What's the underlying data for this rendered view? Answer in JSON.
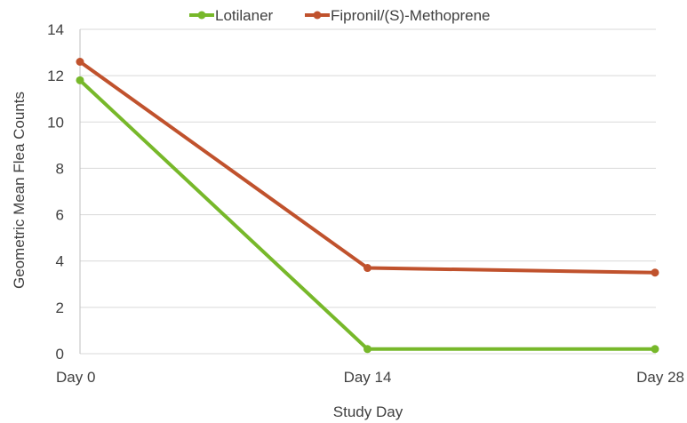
{
  "chart_data": {
    "type": "line",
    "title": "",
    "xlabel": "Study Day",
    "ylabel": "Geometric Mean Flea Counts",
    "categories": [
      "Day 0",
      "Day 14",
      "Day 28"
    ],
    "ylim": [
      0,
      14
    ],
    "yticks": [
      "0",
      "2",
      "4",
      "6",
      "8",
      "10",
      "12",
      "14"
    ],
    "grid": true,
    "legend_position": "top",
    "series": [
      {
        "name": "Lotilaner",
        "color": "#77b82a",
        "values": [
          11.8,
          0.2,
          0.2
        ]
      },
      {
        "name": "Fipronil/(S)-Methoprene",
        "color": "#c0522d",
        "values": [
          12.6,
          3.7,
          3.5
        ]
      }
    ]
  }
}
